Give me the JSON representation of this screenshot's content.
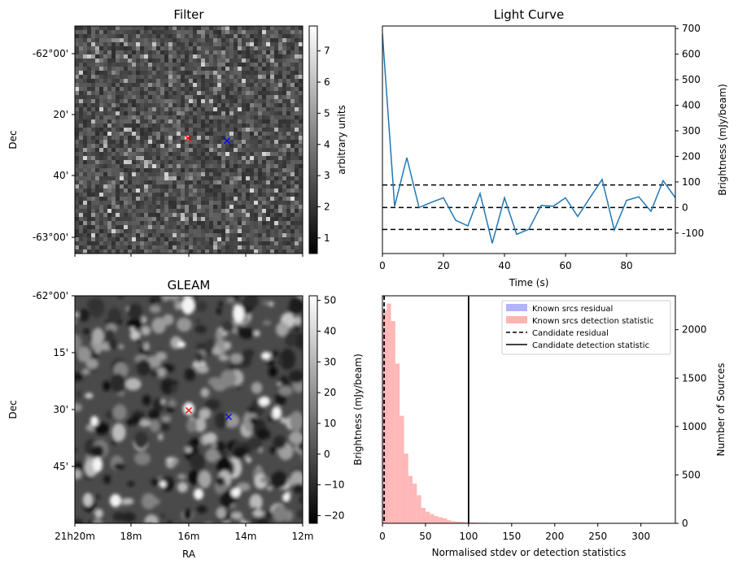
{
  "chart_data": [
    {
      "type": "heatmap",
      "title": "Filter",
      "xlabel": "",
      "ylabel": "Dec",
      "y_ticks": [
        "-62°00'",
        "20'",
        "40'",
        "-63°00'"
      ],
      "colorbar": {
        "label": "arbitrary units",
        "ticks": [
          "1",
          "2",
          "3",
          "4",
          "5",
          "6",
          "7"
        ],
        "range": [
          0.5,
          7.8
        ],
        "cmap": "gray"
      },
      "markers": [
        {
          "symbol": "x",
          "color": "#ff0000"
        },
        {
          "symbol": "x",
          "color": "#0000ff"
        }
      ]
    },
    {
      "type": "line",
      "title": "Light Curve",
      "xlabel": "Time (s)",
      "ylabel": "Brightness (mJy/beam)",
      "xlim": [
        0,
        96
      ],
      "ylim": [
        -180,
        710
      ],
      "x_ticks": [
        "0",
        "20",
        "40",
        "60",
        "80"
      ],
      "y_ticks": [
        "-100",
        "0",
        "100",
        "200",
        "300",
        "400",
        "500",
        "600",
        "700"
      ],
      "series": [
        {
          "color": "#1f77b4",
          "x": [
            0,
            4,
            8,
            12,
            16,
            20,
            24,
            28,
            32,
            36,
            40,
            44,
            48,
            52,
            56,
            60,
            64,
            68,
            72,
            76,
            80,
            84,
            88,
            92,
            96
          ],
          "values": [
            680,
            5,
            195,
            0,
            20,
            38,
            -50,
            -72,
            55,
            -140,
            38,
            -105,
            -85,
            8,
            5,
            38,
            -35,
            38,
            110,
            -88,
            28,
            42,
            -15,
            105,
            38
          ]
        }
      ],
      "hlines": [
        {
          "y": 88,
          "style": "dashed",
          "color": "#000000"
        },
        {
          "y": 0,
          "style": "dashed",
          "color": "#000000"
        },
        {
          "y": -86,
          "style": "dashed",
          "color": "#000000"
        }
      ]
    },
    {
      "type": "heatmap",
      "title": "GLEAM",
      "xlabel": "RA",
      "ylabel": "Dec",
      "x_ticks": [
        "21h20m",
        "18m",
        "16m",
        "14m",
        "12m"
      ],
      "y_ticks": [
        "-62°00'",
        "15'",
        "30'",
        "45'"
      ],
      "colorbar": {
        "label": "Brightness (mJy/beam)",
        "ticks": [
          "−20",
          "−10",
          "0",
          "10",
          "20",
          "30",
          "40",
          "50"
        ],
        "range": [
          -22.5,
          51.5
        ],
        "cmap": "gray"
      },
      "markers": [
        {
          "symbol": "x",
          "color": "#ff0000"
        },
        {
          "symbol": "x",
          "color": "#0000ff"
        }
      ]
    },
    {
      "type": "bar",
      "title": "",
      "xlabel": "Normalised stdev or detection statistics",
      "ylabel": "Number of Sources",
      "xlim": [
        0,
        340
      ],
      "ylim": [
        0,
        2350
      ],
      "x_ticks": [
        "0",
        "50",
        "100",
        "150",
        "200",
        "250",
        "300"
      ],
      "y_ticks": [
        "0",
        "500",
        "1000",
        "1500",
        "2000"
      ],
      "bin_width": 5,
      "series": [
        {
          "name": "Known srcs residual",
          "color": "#b3b3ff",
          "bin_start": 0,
          "values": [
            2000
          ]
        },
        {
          "name": "Known srcs detection statistic",
          "color": "#ffb3b3",
          "bin_start": 0,
          "values": [
            2200,
            2270,
            2090,
            1650,
            1110,
            720,
            490,
            410,
            290,
            160,
            120,
            95,
            75,
            62,
            52,
            32,
            22,
            17,
            15,
            10,
            9,
            8,
            6,
            5,
            5,
            4,
            3,
            3,
            2,
            2,
            2,
            2,
            2,
            1,
            1,
            1,
            1,
            1,
            1,
            1,
            1,
            1,
            1,
            1,
            1,
            1,
            1,
            1,
            1,
            1,
            1,
            1,
            1,
            1,
            1,
            1,
            1,
            1,
            1,
            1,
            1,
            1,
            1,
            1
          ]
        }
      ],
      "vlines": [
        {
          "name": "Candidate residual",
          "x": 2,
          "style": "dashed",
          "color": "#000000"
        },
        {
          "name": "Candidate detection statistic",
          "x": 100,
          "style": "solid",
          "color": "#000000"
        }
      ],
      "legend": "top-right",
      "extra_label": "Brightness (mJy/beam)"
    }
  ]
}
